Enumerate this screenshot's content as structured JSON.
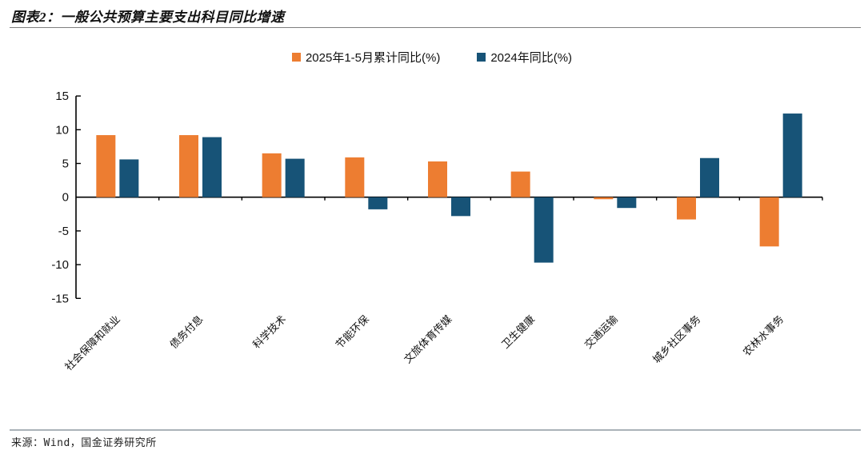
{
  "header": {
    "title": "图表2：一般公共预算主要支出科目同比增速"
  },
  "footer": {
    "source": "来源：Wind，国金证券研究所"
  },
  "chart_data": {
    "type": "bar",
    "title": "图表2：一般公共预算主要支出科目同比增速",
    "categories": [
      "社会保障和就业",
      "债务付息",
      "科学技术",
      "节能环保",
      "文旅体育传媒",
      "卫生健康",
      "交通运输",
      "城乡社区事务",
      "农林水事务"
    ],
    "series": [
      {
        "name": "2025年1-5月累计同比(%)",
        "color": "#ED7D31",
        "values": [
          9.2,
          9.2,
          6.5,
          5.9,
          5.3,
          3.8,
          -0.3,
          -3.3,
          -7.3
        ]
      },
      {
        "name": "2024年同比(%)",
        "color": "#175377",
        "values": [
          5.6,
          8.9,
          5.7,
          -1.8,
          -2.8,
          -9.7,
          -1.6,
          5.8,
          12.4
        ]
      }
    ],
    "xlabel": "",
    "ylabel": "",
    "ylim": [
      -15,
      15
    ],
    "yticks": [
      15,
      10,
      5,
      0,
      -5,
      -10,
      -15
    ],
    "grid": false,
    "legend_position": "top-center",
    "axis_color": "#000000"
  }
}
